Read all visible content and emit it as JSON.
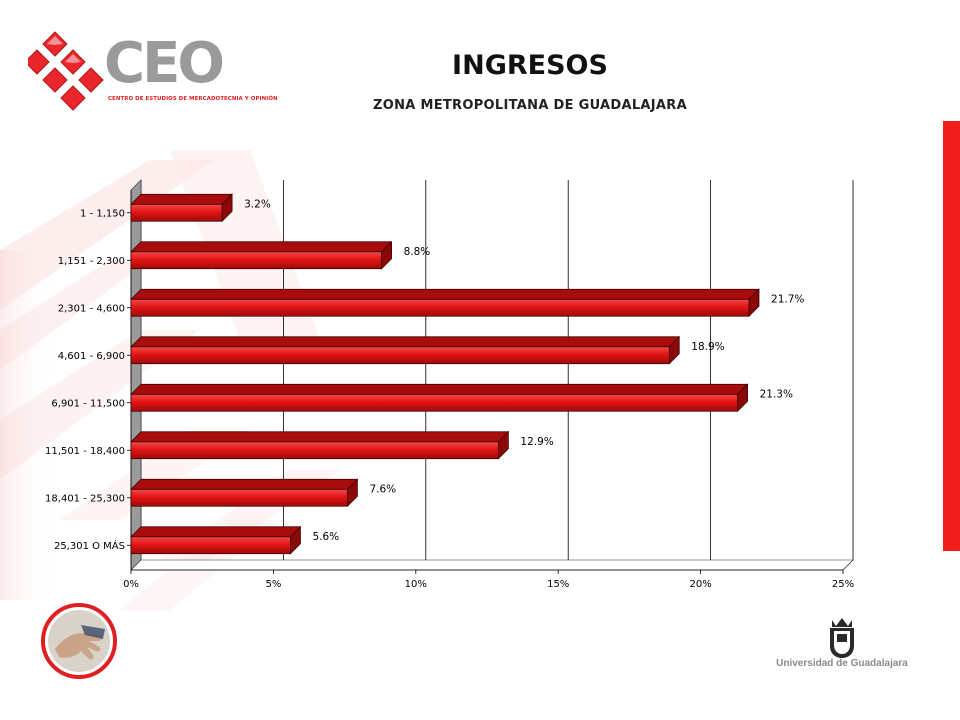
{
  "header": {
    "title": "INGRESOS",
    "subtitle": "ZONA METROPOLITANA DE GUADALAJARA"
  },
  "logo": {
    "name": "CEO",
    "tagline": "CENTRO DE ESTUDIOS DE MERCADOTECNIA Y OPINIÓN"
  },
  "footer": {
    "university": "Universidad de Guadalajara"
  },
  "colors": {
    "accent": "#f21d1d",
    "bar": "#e31414",
    "bar_top": "#a80c0c",
    "bar_side": "#8a0808",
    "logo_gray": "#9a9a9a"
  },
  "chart_data": {
    "type": "bar",
    "orientation": "horizontal",
    "title": "",
    "xlabel": "",
    "ylabel": "",
    "categories": [
      "1 - 1,150",
      "1,151 - 2,300",
      "2,301 - 4,600",
      "4,601 - 6,900",
      "6,901 - 11,500",
      "11,501 - 18,400",
      "18,401 - 25,300",
      "25,301 O MÁS"
    ],
    "values": [
      3.2,
      8.8,
      21.7,
      18.9,
      21.3,
      12.9,
      7.6,
      5.6
    ],
    "data_labels": [
      "3.2%",
      "8.8%",
      "21.7%",
      "18.9%",
      "21.3%",
      "12.9%",
      "7.6%",
      "5.6%"
    ],
    "xlim": [
      0,
      25
    ],
    "x_ticks": [
      0,
      5,
      10,
      15,
      20,
      25
    ],
    "x_tick_labels": [
      "0%",
      "5%",
      "10%",
      "15%",
      "20%",
      "25%"
    ],
    "grid": "vertical",
    "legend": "none",
    "style": "3d"
  }
}
